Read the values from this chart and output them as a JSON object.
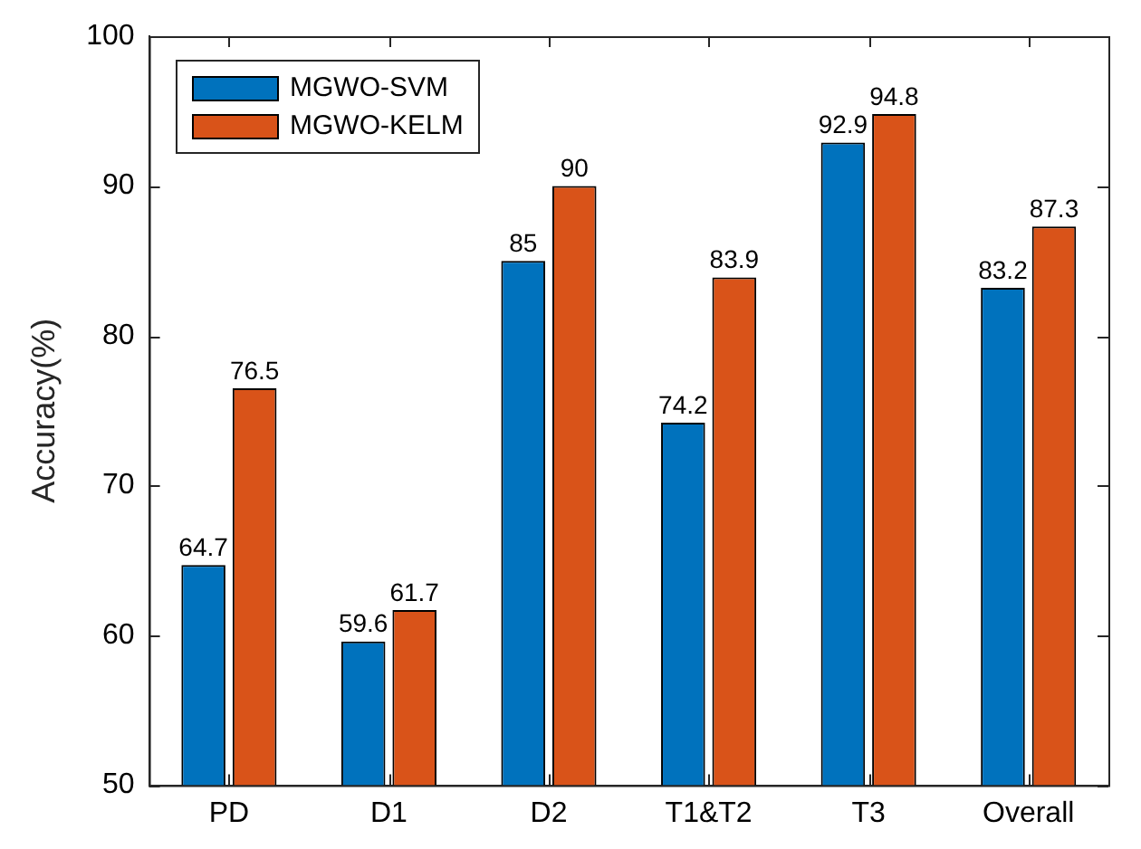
{
  "chart_data": {
    "type": "bar",
    "ylabel": "Accuracy(%)",
    "categories": [
      "PD",
      "D1",
      "D2",
      "T1&T2",
      "T3",
      "Overall"
    ],
    "series": [
      {
        "name": "MGWO-SVM",
        "color": "#0072bd",
        "values": [
          64.7,
          59.6,
          85,
          74.2,
          92.9,
          83.2
        ]
      },
      {
        "name": "MGWO-KELM",
        "color": "#d95319",
        "values": [
          76.5,
          61.7,
          90,
          83.9,
          94.8,
          87.3
        ]
      }
    ],
    "ylim": [
      50,
      100
    ],
    "yticks": [
      50,
      60,
      70,
      80,
      90,
      100
    ],
    "grid": false,
    "legend": "top left",
    "data_labels": true
  }
}
